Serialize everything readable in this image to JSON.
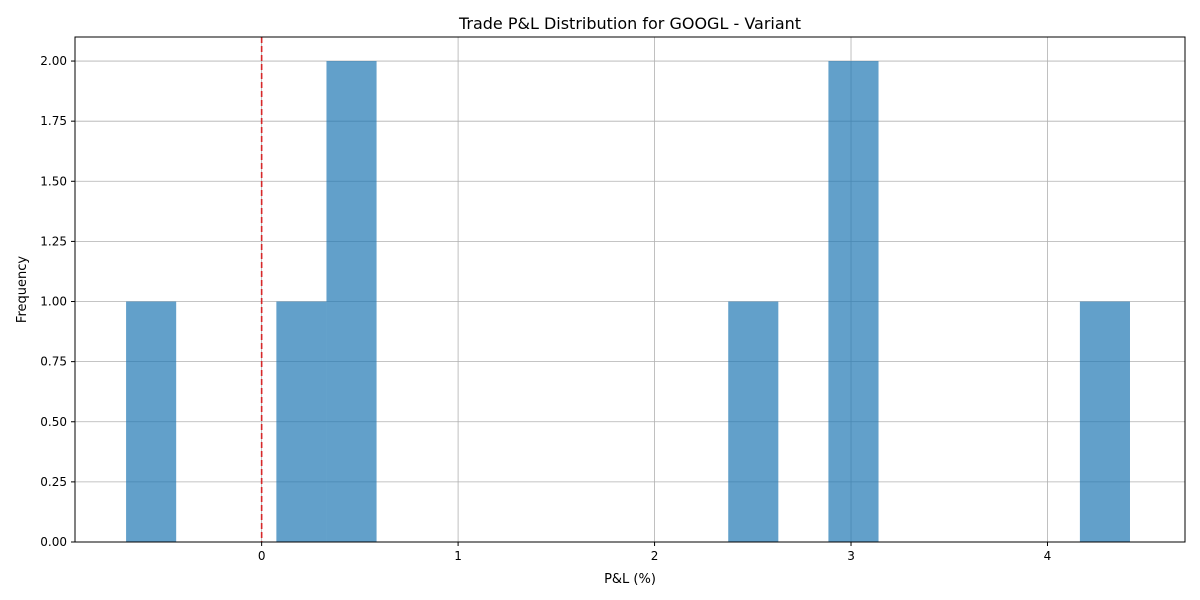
{
  "chart_data": {
    "type": "bar",
    "title": "Trade P&L Distribution for GOOGL - Variant",
    "xlabel": "P&L (%)",
    "ylabel": "Frequency",
    "xlim": [
      -0.95,
      4.7
    ],
    "ylim": [
      0,
      2.1
    ],
    "xticks": [
      0,
      1,
      2,
      3,
      4
    ],
    "yticks": [
      0.0,
      0.25,
      0.5,
      0.75,
      1.0,
      1.25,
      1.5,
      1.75,
      2.0
    ],
    "ytick_labels": [
      "0.00",
      "0.25",
      "0.50",
      "0.75",
      "1.00",
      "1.25",
      "1.50",
      "1.75",
      "2.00"
    ],
    "bins": [
      {
        "x0": -0.69,
        "x1": -0.435,
        "count": 1
      },
      {
        "x0": 0.075,
        "x1": 0.33,
        "count": 1
      },
      {
        "x0": 0.33,
        "x1": 0.585,
        "count": 2
      },
      {
        "x0": 2.375,
        "x1": 2.63,
        "count": 1
      },
      {
        "x0": 2.885,
        "x1": 3.14,
        "count": 2
      },
      {
        "x0": 4.165,
        "x1": 4.42,
        "count": 1
      }
    ],
    "reference_line": {
      "x": 0,
      "style": "dashed",
      "color": "#d62728"
    },
    "bar_color": "#1f77b4",
    "bar_alpha": 0.7,
    "grid": true,
    "legend": "none"
  }
}
